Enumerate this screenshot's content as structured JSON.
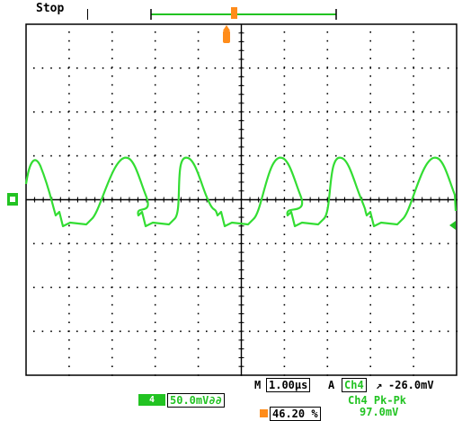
{
  "status": {
    "run_state": "Stop"
  },
  "colors": {
    "trace": "#33dd33",
    "channel_badge": "#22c322",
    "trigger": "#ff8c1a",
    "grid_dots": "#000000",
    "frame": "#000000"
  },
  "grid": {
    "divisions_x": 10,
    "divisions_y": 8
  },
  "channel": {
    "badge_icon": "ch4-ground-marker-icon",
    "label": "4",
    "scale": "50.0mV∂∂"
  },
  "timebase": {
    "prefix": "M",
    "value": "1.00µs"
  },
  "trigger": {
    "prefix": "A",
    "source": "Ch4",
    "slope_icon": "rising-edge-icon",
    "slope_symbol": "↗",
    "level": "-26.0mV",
    "position": "46.20 %"
  },
  "measurement": {
    "name": "Ch4 Pk-Pk",
    "value": "97.0mV"
  }
}
